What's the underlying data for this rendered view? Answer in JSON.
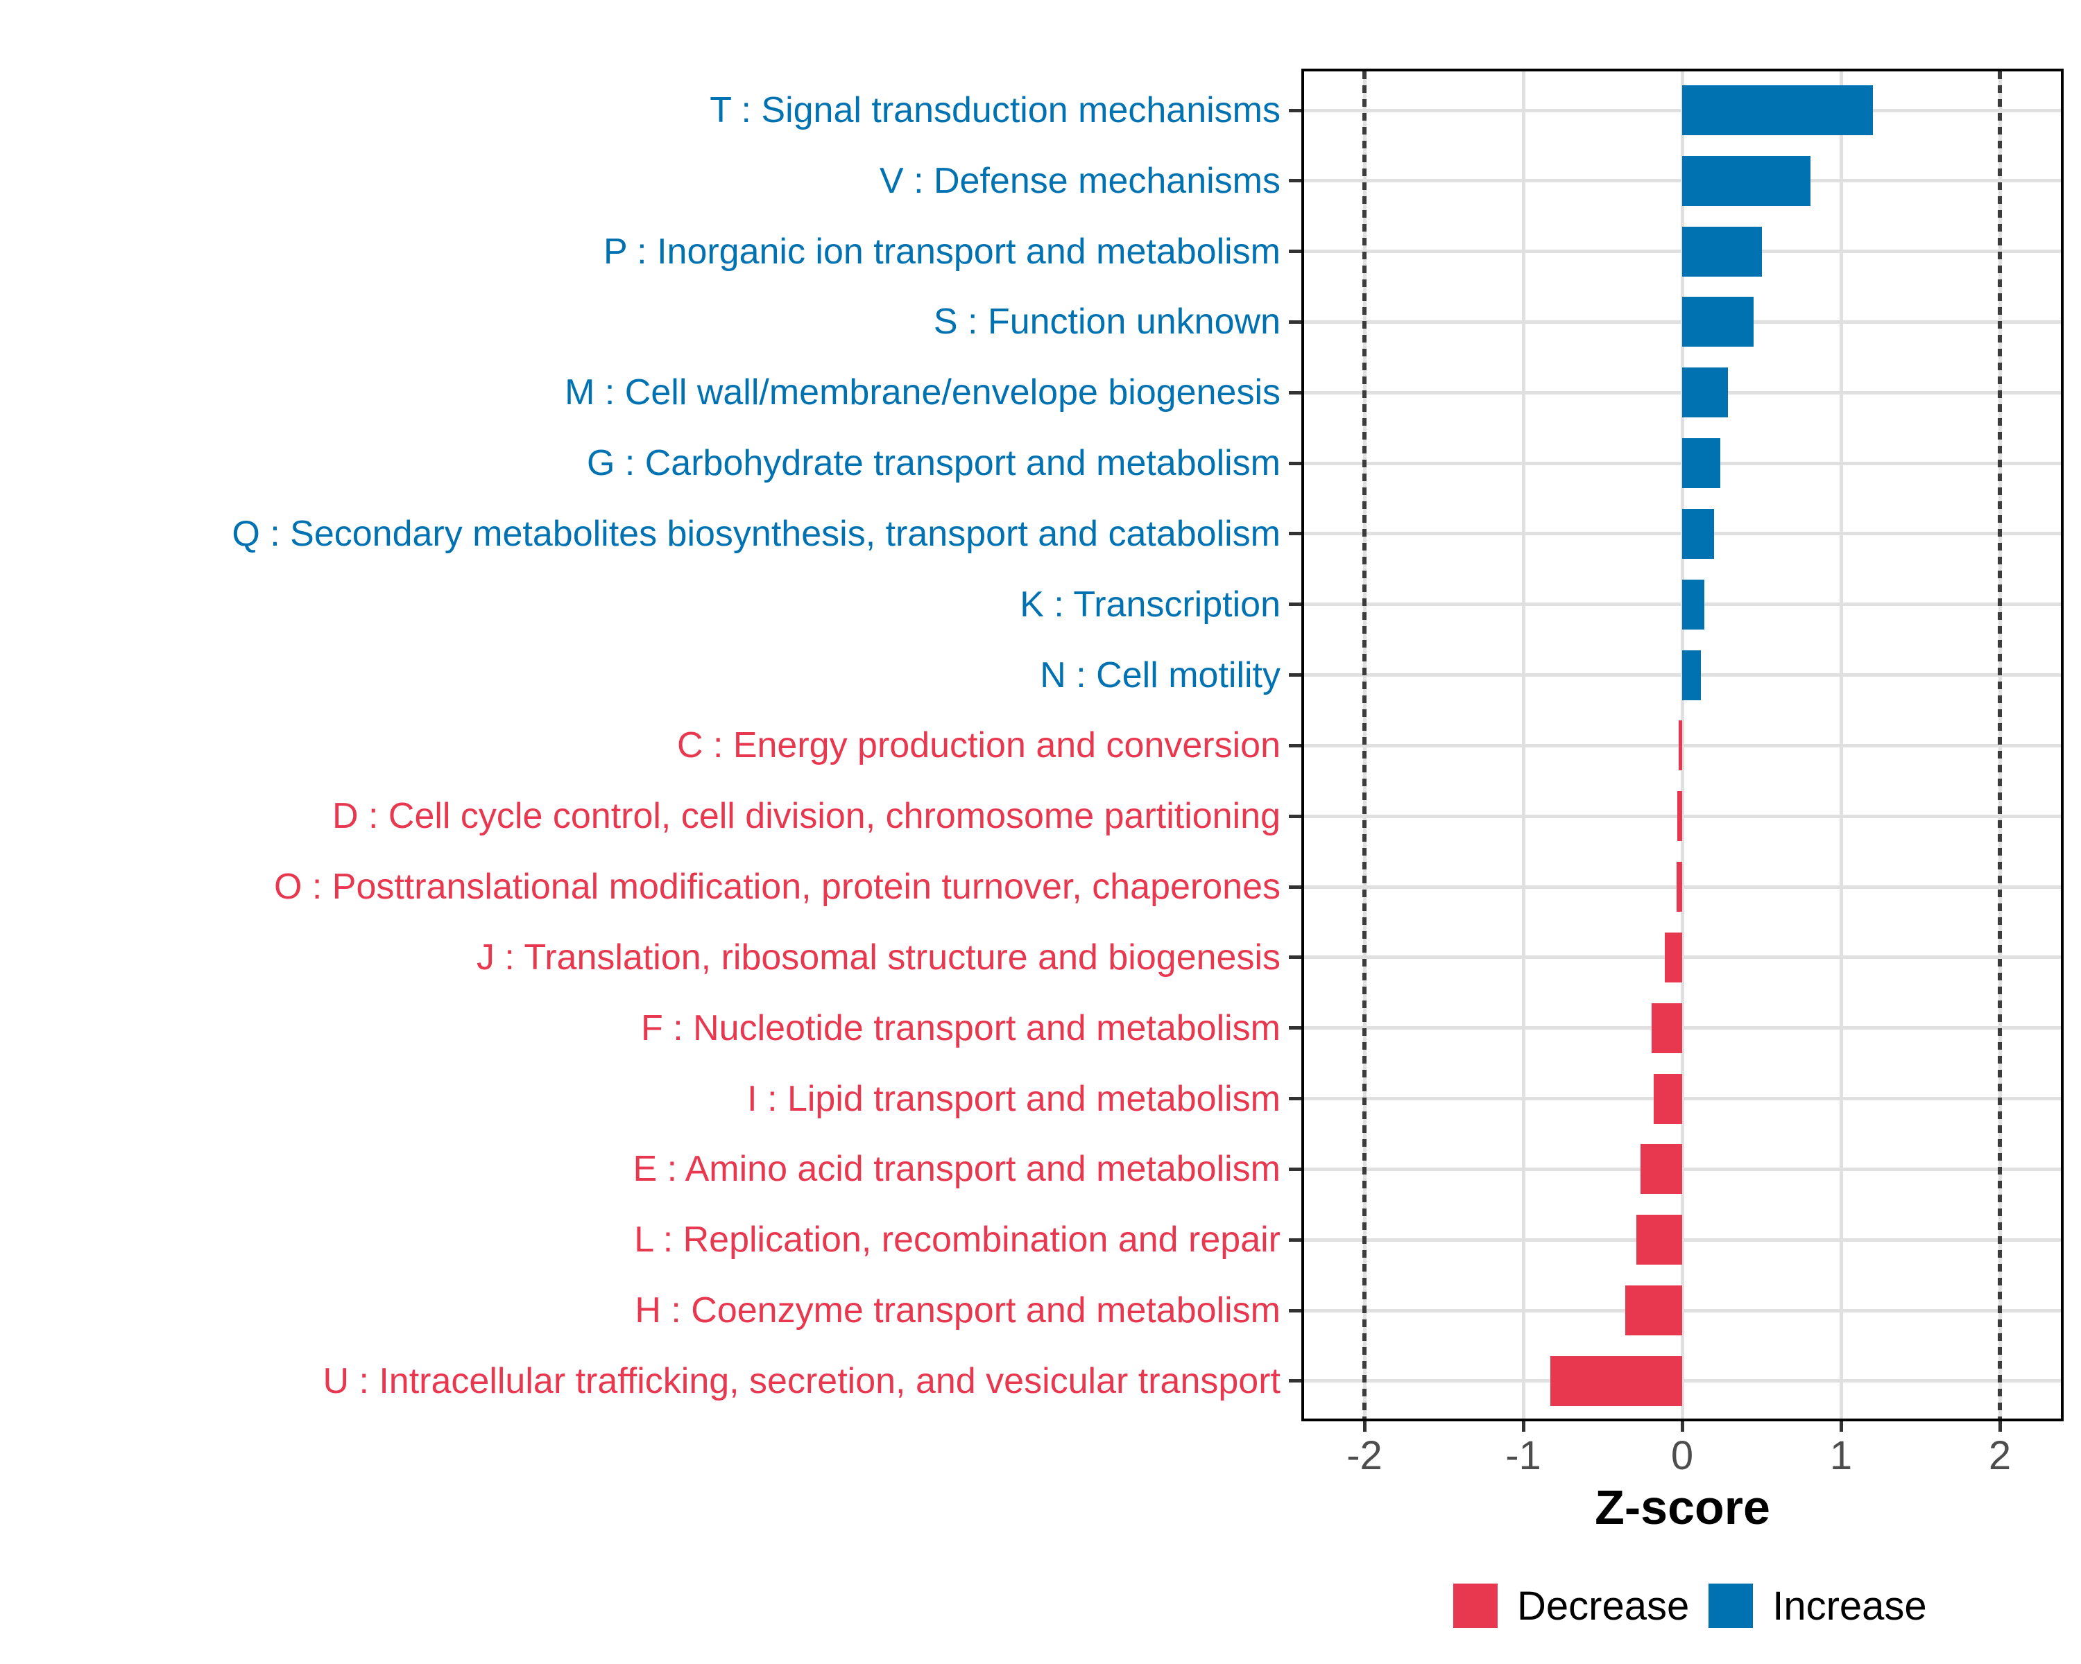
{
  "chart_data": {
    "type": "bar",
    "orientation": "horizontal",
    "xlabel": "Z-score",
    "x_ticks": [
      "-2",
      "-1",
      "0",
      "1",
      "2"
    ],
    "x_tick_values": [
      -2,
      -1,
      0,
      1,
      2
    ],
    "xlim": [
      -2.4,
      2.4
    ],
    "reference_lines": [
      -2,
      2
    ],
    "grid": true,
    "categories": [
      "T : Signal transduction mechanisms",
      "V : Defense mechanisms",
      "P : Inorganic ion transport and metabolism",
      "S : Function unknown",
      "M : Cell wall/membrane/envelope biogenesis",
      "G : Carbohydrate transport and metabolism",
      "Q : Secondary metabolites biosynthesis, transport and catabolism",
      "K : Transcription",
      "N : Cell motility",
      "C : Energy production and conversion",
      "D : Cell cycle control, cell division, chromosome partitioning",
      "O : Posttranslational modification, protein turnover, chaperones",
      "J : Translation, ribosomal structure and biogenesis",
      "F : Nucleotide transport and metabolism",
      "I : Lipid transport and metabolism",
      "E : Amino acid transport and metabolism",
      "L : Replication, recombination and repair",
      "H : Coenzyme transport and metabolism",
      "U : Intracellular trafficking, secretion, and vesicular transport"
    ],
    "values": [
      1.2,
      0.81,
      0.5,
      0.45,
      0.29,
      0.24,
      0.2,
      0.14,
      0.12,
      -0.02,
      -0.03,
      -0.035,
      -0.11,
      -0.19,
      -0.18,
      -0.26,
      -0.29,
      -0.36,
      -0.83
    ],
    "groups": [
      "Increase",
      "Increase",
      "Increase",
      "Increase",
      "Increase",
      "Increase",
      "Increase",
      "Increase",
      "Increase",
      "Decrease",
      "Decrease",
      "Decrease",
      "Decrease",
      "Decrease",
      "Decrease",
      "Decrease",
      "Decrease",
      "Decrease",
      "Decrease"
    ],
    "colors": {
      "increase": "#0072B2",
      "decrease": "#E8384F"
    },
    "legend": {
      "position": "bottom",
      "items": [
        {
          "label": "Decrease",
          "color": "#E8384F"
        },
        {
          "label": "Increase",
          "color": "#0072B2"
        }
      ]
    },
    "style_colors": {
      "panel_background": "#FFFFFF",
      "panel_border": "#000000",
      "gridline": "#E0E0E0",
      "reference_line": "#3C3C3C",
      "tick_mark": "#333333",
      "tick_label": "#4D4D4D",
      "axis_title": "#000000",
      "legend_text": "#000000"
    }
  }
}
